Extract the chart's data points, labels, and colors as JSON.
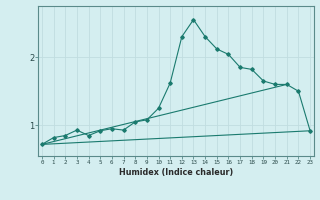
{
  "xlabel": "Humidex (Indice chaleur)",
  "bg_color": "#d4eef0",
  "grid_color": "#c0dde0",
  "line_color": "#1a7a6e",
  "x_ticks": [
    0,
    1,
    2,
    3,
    4,
    5,
    6,
    7,
    8,
    9,
    10,
    11,
    12,
    13,
    14,
    15,
    16,
    17,
    18,
    19,
    20,
    21,
    22,
    23
  ],
  "y_ticks": [
    1,
    2
  ],
  "xlim": [
    -0.3,
    23.3
  ],
  "ylim": [
    0.55,
    2.75
  ],
  "line1_x": [
    0,
    1,
    2,
    3,
    4,
    5,
    6,
    7,
    8,
    9,
    10,
    11,
    12,
    13,
    14,
    15,
    16,
    17,
    18,
    19,
    20,
    21,
    22,
    23
  ],
  "line1_y": [
    0.72,
    0.82,
    0.85,
    0.93,
    0.85,
    0.92,
    0.95,
    0.93,
    1.05,
    1.08,
    1.25,
    1.62,
    2.3,
    2.55,
    2.3,
    2.12,
    2.04,
    1.85,
    1.82,
    1.65,
    1.6,
    1.6,
    1.5,
    0.92
  ],
  "line2_x": [
    0,
    23
  ],
  "line2_y": [
    0.72,
    0.92
  ],
  "line3_x": [
    0,
    21
  ],
  "line3_y": [
    0.72,
    1.6
  ]
}
